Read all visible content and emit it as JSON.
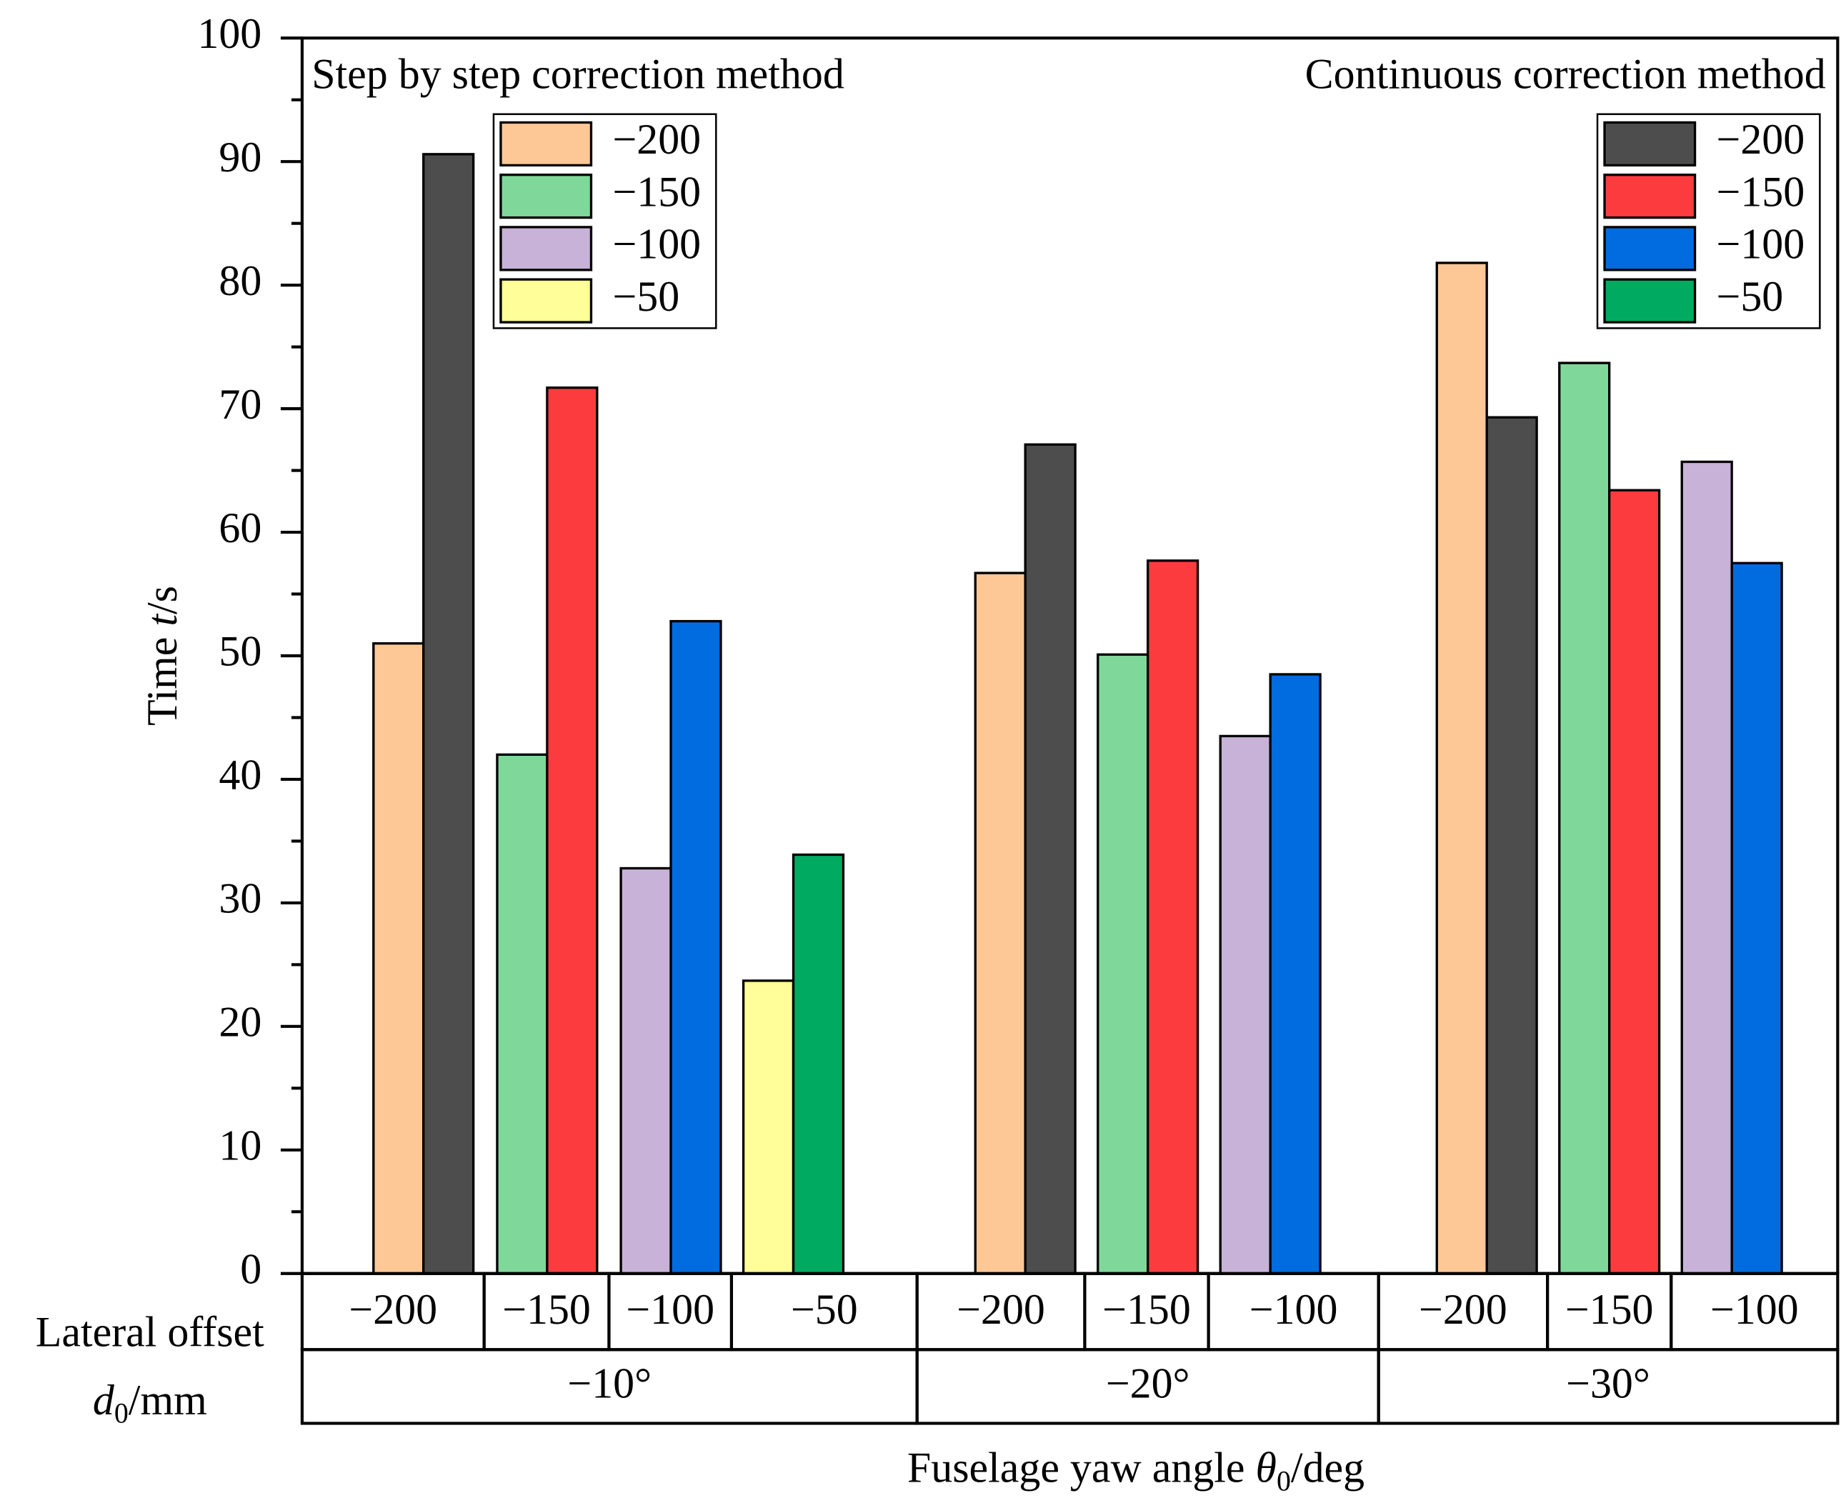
{
  "chart_data": {
    "type": "bar",
    "y_label": [
      "Time ",
      "t",
      "/s"
    ],
    "x_label": [
      "Fuselage yaw angle  ",
      "θ",
      "0",
      "/deg"
    ],
    "row_label": "Lateral offset",
    "row_label2": [
      "d",
      "0",
      "/mm"
    ],
    "ylim": [
      0,
      100
    ],
    "yticks": [
      0,
      10,
      20,
      30,
      40,
      50,
      60,
      70,
      80,
      90,
      100
    ],
    "minor_yticks": [
      5,
      15,
      25,
      35,
      45,
      55,
      65,
      75,
      85,
      95
    ],
    "groups": [
      {
        "label": "−10°",
        "categories": [
          "−200",
          "−150",
          "−100",
          "−50"
        ]
      },
      {
        "label": "−20°",
        "categories": [
          "−200",
          "−150",
          "−100"
        ]
      },
      {
        "label": "−30°",
        "categories": [
          "−200",
          "−150",
          "−100"
        ]
      }
    ],
    "series": [
      {
        "name": "Step by step correction method",
        "legend_corner": "upper left",
        "entries": [
          {
            "name": "−200",
            "color": "#fdc896"
          },
          {
            "name": "−150",
            "color": "#7fd89a"
          },
          {
            "name": "−100",
            "color": "#c8b2d8"
          },
          {
            "name": "−50",
            "color": "#fffe99"
          }
        ],
        "values": [
          51,
          42,
          32.8,
          23.7,
          56.7,
          50.1,
          43.5,
          81.8,
          73.7,
          65.7
        ]
      },
      {
        "name": "Continuous correction method",
        "legend_corner": "upper right",
        "entries": [
          {
            "name": "−200",
            "color": "#4d4d4d"
          },
          {
            "name": "−150",
            "color": "#fc3b3f"
          },
          {
            "name": "−100",
            "color": "#006ce0"
          },
          {
            "name": "−50",
            "color": "#00aa60"
          }
        ],
        "values": [
          90.6,
          71.7,
          52.8,
          33.9,
          67.1,
          57.7,
          48.5,
          69.3,
          63.4,
          57.5
        ]
      }
    ]
  }
}
